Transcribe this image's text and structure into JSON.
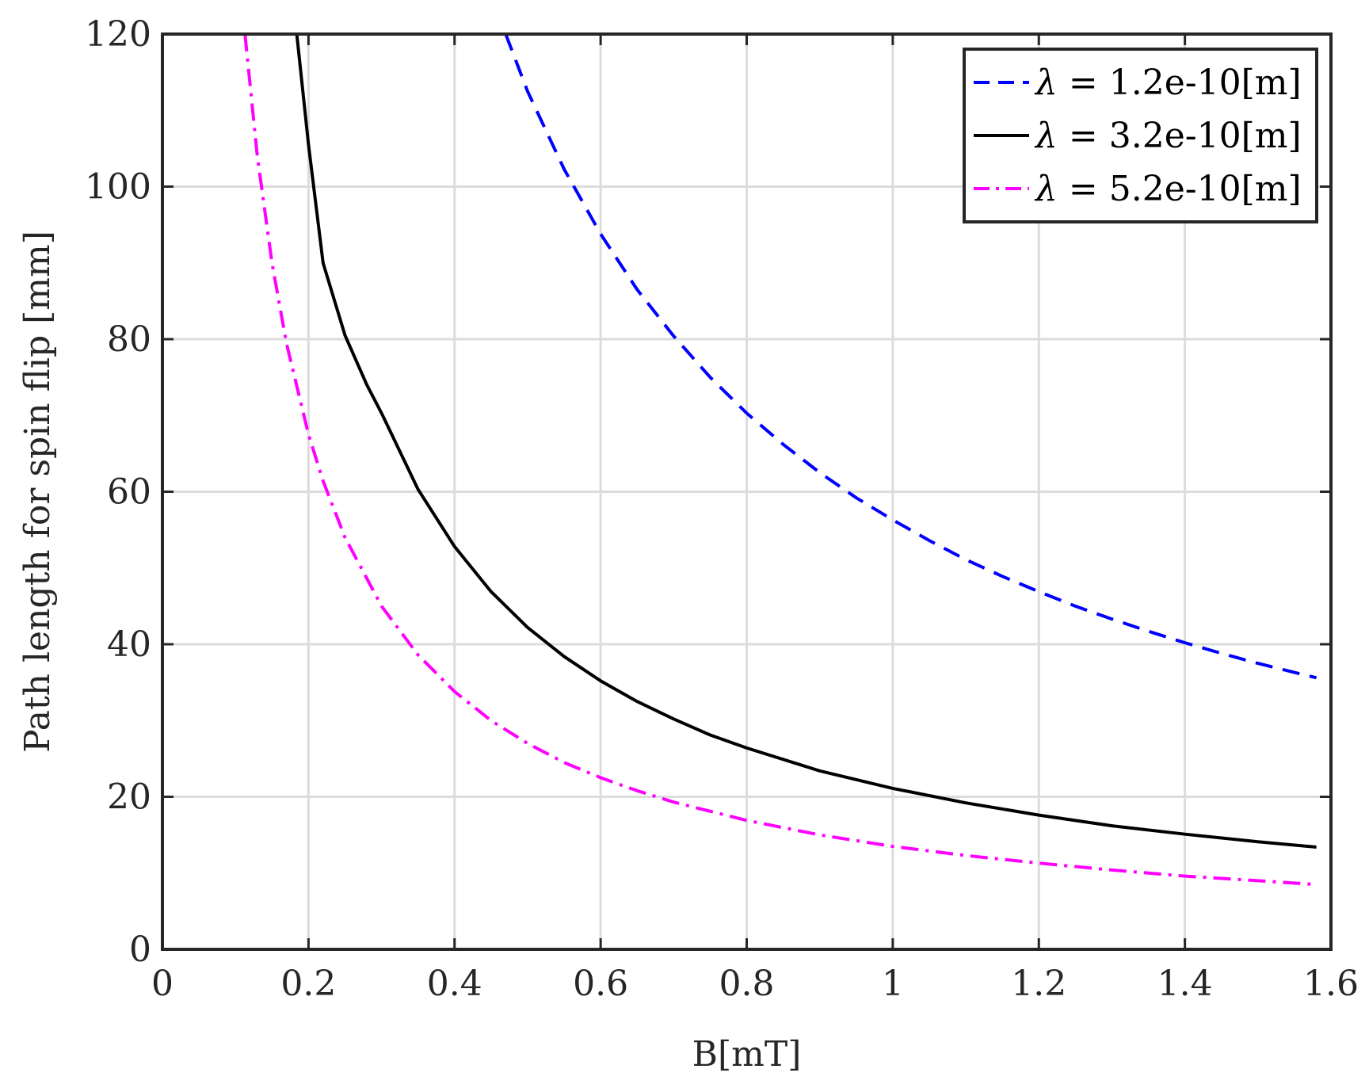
{
  "chart_data": {
    "type": "line",
    "xlabel": "B[mT]",
    "ylabel": "Path length for spin flip [mm]",
    "xlim": [
      0,
      1.6
    ],
    "ylim": [
      0,
      120
    ],
    "xticks": [
      0,
      0.2,
      0.4,
      0.6,
      0.8,
      1.0,
      1.2,
      1.4,
      1.6
    ],
    "xtick_labels": [
      "0",
      "0.2",
      "0.4",
      "0.6",
      "0.8",
      "1",
      "1.2",
      "1.4",
      "1.6"
    ],
    "yticks": [
      0,
      20,
      40,
      60,
      80,
      100,
      120
    ],
    "ytick_labels": [
      "0",
      "20",
      "40",
      "60",
      "80",
      "100",
      "120"
    ],
    "grid": true,
    "legend_position": "top-right",
    "series": [
      {
        "name": "λ = 1.2e-10[m]",
        "legend_symbol": "λ",
        "legend_text": " = 1.2e-10[m]",
        "color": "#0000ff",
        "style": "dashed",
        "x": [
          0.47,
          0.5,
          0.55,
          0.6,
          0.65,
          0.7,
          0.75,
          0.8,
          0.85,
          0.9,
          0.95,
          1.0,
          1.05,
          1.1,
          1.15,
          1.2,
          1.25,
          1.3,
          1.35,
          1.4,
          1.45,
          1.5,
          1.55,
          1.58
        ],
        "y": [
          120,
          112.5,
          102.3,
          93.8,
          86.5,
          80.4,
          75.0,
          70.3,
          66.2,
          62.5,
          59.2,
          56.3,
          53.6,
          51.1,
          48.9,
          46.9,
          45.0,
          43.3,
          41.7,
          40.2,
          38.8,
          37.5,
          36.3,
          35.6
        ]
      },
      {
        "name": "λ = 3.2e-10[m]",
        "legend_symbol": "λ",
        "legend_text": " = 3.2e-10[m]",
        "color": "#000000",
        "style": "solid",
        "x": [
          0.184,
          0.2,
          0.22,
          0.25,
          0.28,
          0.3,
          0.35,
          0.4,
          0.45,
          0.5,
          0.55,
          0.6,
          0.65,
          0.7,
          0.75,
          0.8,
          0.9,
          1.0,
          1.1,
          1.2,
          1.3,
          1.4,
          1.5,
          1.58
        ],
        "y": [
          120,
          105.5,
          90,
          80.5,
          74.0,
          70.3,
          60.3,
          52.8,
          46.9,
          42.2,
          38.4,
          35.2,
          32.5,
          30.2,
          28.1,
          26.4,
          23.4,
          21.1,
          19.2,
          17.6,
          16.2,
          15.1,
          14.1,
          13.4
        ]
      },
      {
        "name": "λ = 5.2e-10[m]",
        "legend_symbol": "λ",
        "legend_text": " = 5.2e-10[m]",
        "color": "#ff00ff",
        "style": "dashdot",
        "x": [
          0.113,
          0.13,
          0.15,
          0.17,
          0.2,
          0.22,
          0.25,
          0.3,
          0.35,
          0.4,
          0.45,
          0.5,
          0.55,
          0.6,
          0.65,
          0.7,
          0.8,
          0.9,
          1.0,
          1.1,
          1.2,
          1.3,
          1.4,
          1.5,
          1.58
        ],
        "y": [
          120,
          104,
          90,
          79.4,
          67.5,
          61.4,
          54,
          45,
          38.6,
          33.8,
          30,
          27,
          24.5,
          22.5,
          20.8,
          19.3,
          16.9,
          15,
          13.5,
          12.3,
          11.3,
          10.4,
          9.6,
          9.0,
          8.5
        ]
      }
    ]
  }
}
